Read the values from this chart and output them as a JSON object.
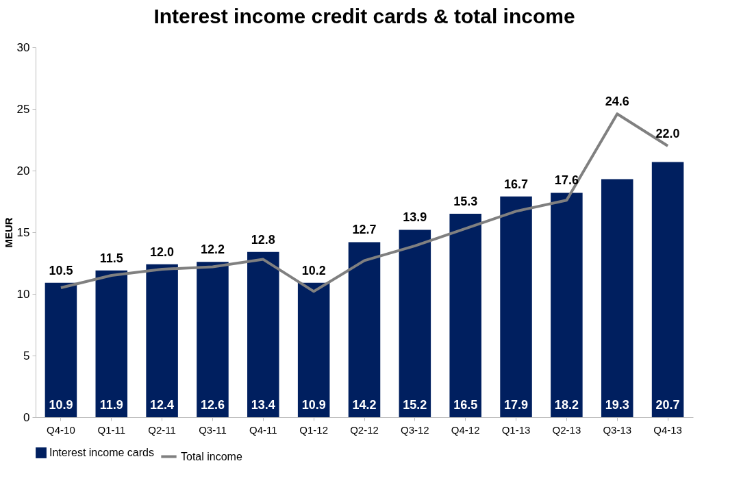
{
  "chart_data": {
    "type": "bar",
    "title": "Interest income credit cards & total income",
    "ylabel": "MEUR",
    "categories": [
      "Q4-10",
      "Q1-11",
      "Q2-11",
      "Q3-11",
      "Q4-11",
      "Q1-12",
      "Q2-12",
      "Q3-12",
      "Q4-12",
      "Q1-13",
      "Q2-13",
      "Q3-13",
      "Q4-13"
    ],
    "series": [
      {
        "name": "Interest income cards",
        "color": "#001f5f",
        "values": [
          10.9,
          11.9,
          12.4,
          12.6,
          13.4,
          10.9,
          14.2,
          15.2,
          16.5,
          17.9,
          18.2,
          19.3,
          20.7
        ],
        "value_labels": [
          "10.9",
          "11.9",
          "12.4",
          "12.6",
          "13.4",
          "10.9",
          "14.2",
          "15.2",
          "16.5",
          "17.9",
          "18.2",
          "19.3",
          "20.7"
        ]
      },
      {
        "name": "Total income",
        "type": "line",
        "color": "#808080",
        "values": [
          10.5,
          11.5,
          12.0,
          12.2,
          12.8,
          10.2,
          12.7,
          13.9,
          15.3,
          16.7,
          17.6,
          24.6,
          22.0
        ],
        "value_labels": [
          "10.5",
          "11.5",
          "12.0",
          "12.2",
          "12.8",
          "10.2",
          "12.7",
          "13.9",
          "15.3",
          "16.7",
          "17.6",
          "24.6",
          "22.0"
        ]
      }
    ],
    "ylim": [
      0,
      30
    ],
    "yticks": [
      0,
      5,
      10,
      15,
      20,
      25,
      30
    ],
    "legend": "bottom",
    "line_style": "solid"
  }
}
